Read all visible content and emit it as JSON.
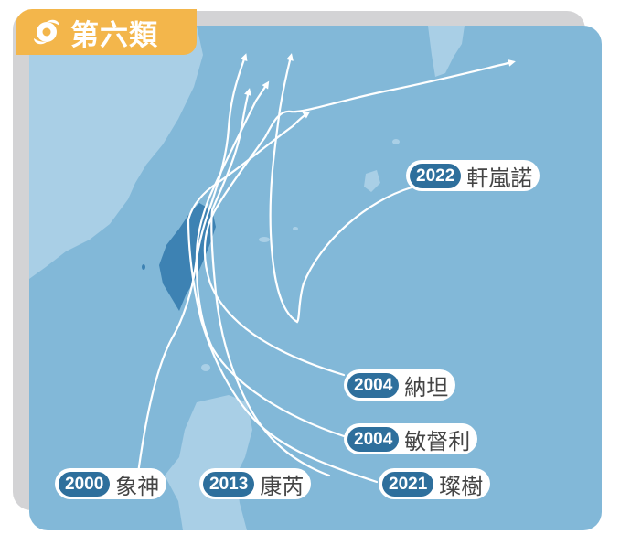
{
  "header": {
    "category_label": "第六類",
    "icon": "typhoon-icon",
    "badge_color": "#f3b64b"
  },
  "colors": {
    "sea": "#82b8d8",
    "land": "#a9cfe6",
    "taiwan": "#3d82b3",
    "track": "#ffffff",
    "year_pill": "#2e6f9c"
  },
  "storms": [
    {
      "id": "rananim",
      "year": "2022",
      "name": "軒嵐諾"
    },
    {
      "id": "nari",
      "year": "2004",
      "name": "納坦"
    },
    {
      "id": "mindulle",
      "year": "2004",
      "name": "敏督利"
    },
    {
      "id": "bilis",
      "year": "2000",
      "name": "象神"
    },
    {
      "id": "kong-rey",
      "year": "2013",
      "name": "康芮"
    },
    {
      "id": "chanthu",
      "year": "2021",
      "name": "璨樹"
    }
  ]
}
